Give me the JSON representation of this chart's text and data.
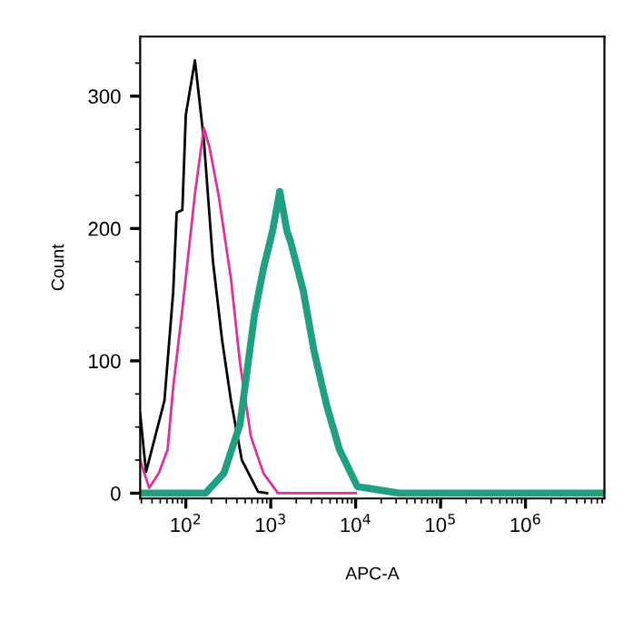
{
  "chart_data": {
    "type": "line",
    "xlabel": "APC-A",
    "ylabel": "Count",
    "log": "x",
    "grid": false,
    "legend": false,
    "marker": "none",
    "line_style": "solid",
    "xlim": [
      29,
      8500000
    ],
    "ylim": [
      -4,
      345
    ],
    "xticks": [
      {
        "value": 100,
        "label": "10$^{2}$"
      },
      {
        "value": 1000,
        "label": "10$^{3}$"
      },
      {
        "value": 10000,
        "label": "10$^{4}$"
      },
      {
        "value": 100000,
        "label": "10$^{5}$"
      },
      {
        "value": 1000000,
        "label": "10$^{6}$"
      }
    ],
    "yticks": [
      0,
      100,
      200,
      300
    ],
    "series": [
      {
        "color": "#000000",
        "x": [
          29,
          34,
          56,
          71,
          78,
          91,
          100,
          128,
          163,
          208,
          267,
          340,
          457,
          710,
          906
        ],
        "values": [
          60,
          16,
          70,
          152,
          212,
          214,
          286,
          327,
          267,
          176,
          116,
          70,
          25,
          1,
          0
        ]
      },
      {
        "color": "#e0309a",
        "x": [
          29,
          37,
          48,
          61,
          71,
          91,
          128,
          163,
          189,
          242,
          340,
          435,
          583,
          822,
          1216,
          1986,
          10000
        ],
        "values": [
          25,
          4,
          15,
          33,
          80,
          139,
          226,
          276,
          262,
          226,
          162,
          98,
          43,
          15,
          0,
          0,
          0
        ]
      },
      {
        "color": "#1fa082",
        "x": [
          29,
          171,
          280,
          435,
          644,
          822,
          1050,
          1277,
          1553,
          1714,
          2415,
          3243,
          4570,
          6443,
          10480,
          32400,
          8500000
        ],
        "values": [
          0,
          0,
          15,
          52,
          135,
          170,
          198,
          228,
          198,
          190,
          153,
          107,
          66,
          33,
          5,
          0,
          0
        ]
      }
    ]
  }
}
